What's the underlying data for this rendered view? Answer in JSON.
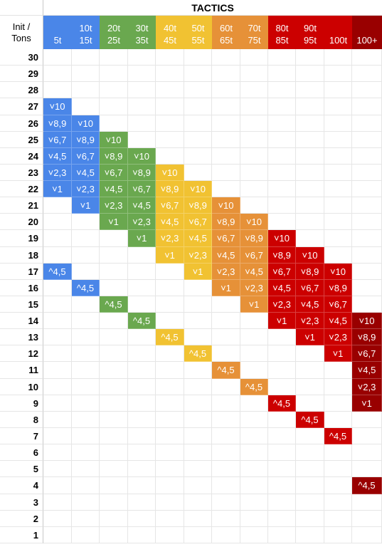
{
  "title": "TACTICS",
  "corner_label": [
    "Init /",
    "Tons"
  ],
  "columns": [
    {
      "label": [
        "",
        "5t"
      ],
      "color": "#4a86e8"
    },
    {
      "label": [
        "10t",
        "15t"
      ],
      "color": "#4a86e8"
    },
    {
      "label": [
        "20t",
        "25t"
      ],
      "color": "#6aa84f"
    },
    {
      "label": [
        "30t",
        "35t"
      ],
      "color": "#6aa84f"
    },
    {
      "label": [
        "40t",
        "45t"
      ],
      "color": "#f1c232"
    },
    {
      "label": [
        "50t",
        "55t"
      ],
      "color": "#f1c232"
    },
    {
      "label": [
        "60t",
        "65t"
      ],
      "color": "#e69138"
    },
    {
      "label": [
        "70t",
        "75t"
      ],
      "color": "#e69138"
    },
    {
      "label": [
        "80t",
        "85t"
      ],
      "color": "#cc0000"
    },
    {
      "label": [
        "90t",
        "95t"
      ],
      "color": "#cc0000"
    },
    {
      "label": [
        "",
        "100t"
      ],
      "color": "#cc0000"
    },
    {
      "label": [
        "",
        "100+"
      ],
      "color": "#990000"
    }
  ],
  "rows": [
    30,
    29,
    28,
    27,
    26,
    25,
    24,
    23,
    22,
    21,
    20,
    19,
    18,
    17,
    16,
    15,
    14,
    13,
    12,
    11,
    10,
    9,
    8,
    7,
    6,
    5,
    4,
    3,
    2,
    1
  ],
  "fills": [
    {
      "col": 0,
      "entries": [
        [
          27,
          "˅10"
        ],
        [
          26,
          "˅8,9"
        ],
        [
          25,
          "˅6,7"
        ],
        [
          24,
          "˅4,5"
        ],
        [
          23,
          "˅2,3"
        ],
        [
          22,
          "˅1"
        ],
        [
          17,
          "^4,5"
        ]
      ]
    },
    {
      "col": 1,
      "entries": [
        [
          26,
          "˅10"
        ],
        [
          25,
          "˅8,9"
        ],
        [
          24,
          "˅6,7"
        ],
        [
          23,
          "˅4,5"
        ],
        [
          22,
          "˅2,3"
        ],
        [
          21,
          "˅1"
        ],
        [
          16,
          "^4,5"
        ]
      ]
    },
    {
      "col": 2,
      "entries": [
        [
          25,
          "˅10"
        ],
        [
          24,
          "˅8,9"
        ],
        [
          23,
          "˅6,7"
        ],
        [
          22,
          "˅4,5"
        ],
        [
          21,
          "˅2,3"
        ],
        [
          20,
          "˅1"
        ],
        [
          15,
          "^4,5"
        ]
      ]
    },
    {
      "col": 3,
      "entries": [
        [
          24,
          "˅10"
        ],
        [
          23,
          "˅8,9"
        ],
        [
          22,
          "˅6,7"
        ],
        [
          21,
          "˅4,5"
        ],
        [
          20,
          "˅2,3"
        ],
        [
          19,
          "˅1"
        ],
        [
          14,
          "^4,5"
        ]
      ]
    },
    {
      "col": 4,
      "entries": [
        [
          23,
          "˅10"
        ],
        [
          22,
          "˅8,9"
        ],
        [
          21,
          "˅6,7"
        ],
        [
          20,
          "˅4,5"
        ],
        [
          19,
          "˅2,3"
        ],
        [
          18,
          "˅1"
        ],
        [
          13,
          "^4,5"
        ]
      ]
    },
    {
      "col": 5,
      "entries": [
        [
          22,
          "˅10"
        ],
        [
          21,
          "˅8,9"
        ],
        [
          20,
          "˅6,7"
        ],
        [
          19,
          "˅4,5"
        ],
        [
          18,
          "˅2,3"
        ],
        [
          17,
          "˅1"
        ],
        [
          12,
          "^4,5"
        ]
      ]
    },
    {
      "col": 6,
      "entries": [
        [
          21,
          "˅10"
        ],
        [
          20,
          "˅8,9"
        ],
        [
          19,
          "˅6,7"
        ],
        [
          18,
          "˅4,5"
        ],
        [
          17,
          "˅2,3"
        ],
        [
          16,
          "˅1"
        ],
        [
          11,
          "^4,5"
        ]
      ]
    },
    {
      "col": 7,
      "entries": [
        [
          20,
          "˅10"
        ],
        [
          19,
          "˅8,9"
        ],
        [
          18,
          "˅6,7"
        ],
        [
          17,
          "˅4,5"
        ],
        [
          16,
          "˅2,3"
        ],
        [
          15,
          "˅1"
        ],
        [
          10,
          "^4,5"
        ]
      ]
    },
    {
      "col": 8,
      "entries": [
        [
          19,
          "˅10"
        ],
        [
          18,
          "˅8,9"
        ],
        [
          17,
          "˅6,7"
        ],
        [
          16,
          "˅4,5"
        ],
        [
          15,
          "˅2,3"
        ],
        [
          14,
          "˅1"
        ],
        [
          9,
          "^4,5"
        ]
      ]
    },
    {
      "col": 9,
      "entries": [
        [
          18,
          "˅10"
        ],
        [
          17,
          "˅8,9"
        ],
        [
          16,
          "˅6,7"
        ],
        [
          15,
          "˅4,5"
        ],
        [
          14,
          "˅2,3"
        ],
        [
          13,
          "˅1"
        ],
        [
          8,
          "^4,5"
        ]
      ]
    },
    {
      "col": 10,
      "entries": [
        [
          17,
          "˅10"
        ],
        [
          16,
          "˅8,9"
        ],
        [
          15,
          "˅6,7"
        ],
        [
          14,
          "˅4,5"
        ],
        [
          13,
          "˅2,3"
        ],
        [
          12,
          "˅1"
        ],
        [
          7,
          "^4,5"
        ]
      ]
    },
    {
      "col": 11,
      "entries": [
        [
          14,
          "˅10"
        ],
        [
          13,
          "˅8,9"
        ],
        [
          12,
          "˅6,7"
        ],
        [
          11,
          "˅4,5"
        ],
        [
          10,
          "˅2,3"
        ],
        [
          9,
          "˅1"
        ],
        [
          4,
          "^4,5"
        ]
      ]
    }
  ]
}
